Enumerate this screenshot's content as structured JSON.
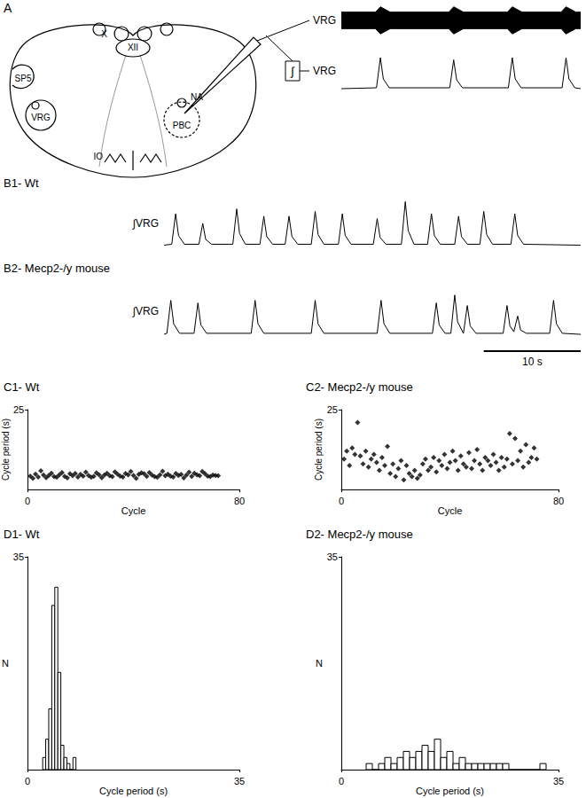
{
  "diagram": {
    "title": "A",
    "labels": [
      "X",
      "XII",
      "SP5",
      "VRG",
      "IO",
      "NA",
      "PBC"
    ]
  },
  "chart_data": [
    {
      "type": "band",
      "y_label": "VRG",
      "color": "#000000",
      "tick_labels": false,
      "xlim": [
        0,
        24.5
      ],
      "ylim": [
        -1,
        1
      ],
      "x": [
        0,
        3.5,
        4.0,
        5.0,
        11.0,
        11.5,
        12.5,
        17.0,
        17.5,
        18.5,
        22.5,
        23.0,
        24.0,
        24.5
      ],
      "upper": [
        0.55,
        0.55,
        0.9,
        0.55,
        0.55,
        0.9,
        0.55,
        0.55,
        0.9,
        0.55,
        0.55,
        0.9,
        0.55,
        0.55
      ],
      "lower": [
        -0.55,
        -0.55,
        -0.9,
        -0.55,
        -0.55,
        -0.9,
        -0.55,
        -0.55,
        -0.9,
        -0.55,
        -0.55,
        -0.9,
        -0.55,
        -0.55
      ]
    },
    {
      "type": "line",
      "y_label": "VRG",
      "annotations": [
        "∫"
      ],
      "color": "#000000",
      "tick_labels": false,
      "xlim": [
        0,
        24.5
      ],
      "ylim": [
        0,
        1
      ],
      "x": [
        0,
        3.6,
        4.0,
        4.3,
        4.9,
        11.1,
        11.5,
        11.8,
        12.4,
        17.1,
        17.5,
        17.8,
        18.4,
        22.6,
        23.0,
        23.3,
        23.9,
        24.5
      ],
      "values": [
        0.1,
        0.12,
        0.8,
        0.32,
        0.12,
        0.12,
        0.75,
        0.3,
        0.12,
        0.12,
        0.8,
        0.32,
        0.12,
        0.12,
        0.8,
        0.32,
        0.12,
        0.1
      ]
    },
    {
      "type": "line",
      "title": "B1- Wt",
      "y_label": "∫VRG",
      "color": "#000000",
      "tick_labels": false,
      "xlim": [
        0,
        43
      ],
      "ylim": [
        0,
        1.1
      ],
      "x": [
        0,
        0.8,
        1.2,
        1.5,
        2.1,
        3.6,
        4.0,
        4.3,
        4.9,
        7.1,
        7.5,
        7.8,
        8.4,
        9.9,
        10.3,
        10.6,
        11.2,
        12.5,
        12.9,
        13.2,
        13.8,
        15.2,
        15.6,
        15.9,
        16.5,
        18.0,
        18.4,
        18.7,
        19.3,
        21.6,
        22.0,
        22.3,
        22.9,
        24.5,
        24.9,
        25.2,
        25.8,
        27.2,
        27.6,
        27.9,
        28.5,
        30.0,
        30.4,
        30.7,
        31.3,
        32.6,
        33.0,
        33.3,
        33.9,
        35.8,
        36.2,
        36.5,
        37.1,
        43
      ],
      "values": [
        0.1,
        0.12,
        0.75,
        0.3,
        0.12,
        0.12,
        0.55,
        0.22,
        0.12,
        0.12,
        0.85,
        0.34,
        0.12,
        0.12,
        0.7,
        0.28,
        0.12,
        0.12,
        0.7,
        0.28,
        0.12,
        0.12,
        0.8,
        0.32,
        0.12,
        0.12,
        0.75,
        0.3,
        0.12,
        0.12,
        0.65,
        0.26,
        0.12,
        0.12,
        1,
        0.4,
        0.12,
        0.12,
        0.75,
        0.3,
        0.12,
        0.12,
        0.7,
        0.28,
        0.12,
        0.12,
        0.8,
        0.32,
        0.12,
        0.12,
        0.75,
        0.3,
        0.12,
        0.1
      ]
    },
    {
      "type": "line",
      "title": "B2- Mecp2-/y mouse",
      "y_label": "∫VRG",
      "color": "#000000",
      "tick_labels": false,
      "xlim": [
        0,
        43
      ],
      "ylim": [
        0,
        1.1
      ],
      "scale_bar": {
        "length": 10,
        "label": "10 s"
      },
      "x": [
        0,
        0.3,
        0.7,
        1.0,
        1.6,
        3.1,
        3.5,
        3.8,
        4.4,
        9.0,
        9.4,
        9.7,
        10.3,
        15.2,
        15.6,
        15.9,
        16.5,
        22.0,
        22.4,
        22.7,
        23.3,
        27.7,
        28.1,
        28.4,
        29.0,
        29.6,
        30.0,
        30.3,
        30.9,
        31.3,
        31.6,
        32.2,
        35.0,
        35.4,
        35.7,
        36.1,
        36.5,
        36.8,
        37.4,
        39.8,
        40.2,
        40.5,
        41.1,
        43
      ],
      "values": [
        0.1,
        0.12,
        0.75,
        0.3,
        0.12,
        0.12,
        0.7,
        0.28,
        0.12,
        0.12,
        0.75,
        0.3,
        0.12,
        0.12,
        0.75,
        0.3,
        0.12,
        0.12,
        0.75,
        0.3,
        0.12,
        0.12,
        0.7,
        0.28,
        0.12,
        0.12,
        0.85,
        0.34,
        0.12,
        0.65,
        0.26,
        0.12,
        0.12,
        0.65,
        0.26,
        0.15,
        0.45,
        0.18,
        0.12,
        0.12,
        0.75,
        0.3,
        0.12,
        0.1
      ]
    },
    {
      "type": "scatter",
      "title": "C1- Wt",
      "x_label": "Cycle",
      "y_label": "Cycle period (s)",
      "color": "#000000",
      "marker": "diamond",
      "xlim": [
        0,
        80
      ],
      "ylim": [
        0,
        25
      ],
      "xticks": [
        0,
        80
      ],
      "yticks": [
        25
      ],
      "x": [
        1,
        2,
        3,
        4,
        5,
        6,
        7,
        8,
        9,
        10,
        11,
        12,
        13,
        14,
        15,
        16,
        17,
        18,
        19,
        20,
        21,
        22,
        23,
        24,
        25,
        26,
        27,
        28,
        29,
        30,
        31,
        32,
        33,
        34,
        35,
        36,
        37,
        38,
        39,
        40,
        41,
        42,
        43,
        44,
        45,
        46,
        47,
        48,
        49,
        50,
        51,
        52,
        53,
        54,
        55,
        56,
        57,
        58,
        59,
        60,
        61,
        62,
        63,
        64,
        65,
        66,
        67,
        68,
        69,
        70,
        71,
        72
      ],
      "values": [
        4.2,
        3.5,
        4.8,
        3.9,
        5.8,
        4.5,
        3.7,
        4.4,
        5.1,
        4.0,
        3.8,
        4.6,
        5.3,
        4.1,
        3.6,
        4.9,
        4.3,
        5.0,
        3.9,
        4.7,
        4.2,
        5.4,
        4.4,
        3.8,
        4.1,
        5.2,
        4.6,
        3.7,
        4.5,
        5.1,
        4.3,
        4.0,
        5.5,
        4.8,
        4.2,
        3.9,
        5.0,
        4.6,
        5.6,
        4.4,
        3.5,
        4.7,
        5.2,
        4.9,
        4.1,
        5.3,
        4.5,
        4.0,
        3.8,
        4.6,
        5.7,
        4.3,
        4.8,
        4.2,
        3.9,
        5.0,
        4.4,
        4.7,
        3.6,
        4.5,
        5.4,
        4.1,
        5.1,
        4.6,
        4.3,
        5.6,
        4.9,
        4.2,
        4.0,
        4.5,
        4.4,
        4.3
      ]
    },
    {
      "type": "scatter",
      "title": "C2- Mecp2-/y mouse",
      "x_label": "Cycle",
      "y_label": "Cycle period (s)",
      "color": "#000000",
      "marker": "diamond",
      "xlim": [
        0,
        80
      ],
      "ylim": [
        0,
        25
      ],
      "xticks": [
        0,
        80
      ],
      "yticks": [
        25
      ],
      "x": [
        1,
        2,
        3,
        4,
        5,
        6,
        7,
        8,
        9,
        10,
        11,
        12,
        13,
        14,
        15,
        16,
        17,
        18,
        19,
        20,
        21,
        22,
        23,
        24,
        25,
        26,
        27,
        28,
        29,
        30,
        31,
        32,
        33,
        34,
        35,
        36,
        37,
        38,
        39,
        40,
        41,
        42,
        43,
        44,
        45,
        46,
        47,
        48,
        49,
        50,
        51,
        52,
        53,
        54,
        55,
        56,
        57,
        58,
        59,
        60,
        61,
        62,
        63,
        64,
        65,
        66,
        67,
        68,
        69,
        70,
        71,
        72
      ],
      "values": [
        9.5,
        12,
        7.5,
        13,
        11,
        21,
        10.5,
        8,
        12,
        7,
        9.5,
        11,
        8.5,
        6,
        10,
        7.5,
        13.5,
        5,
        8,
        4,
        6.5,
        9,
        3,
        7.5,
        5,
        4,
        6,
        3.5,
        4.5,
        8,
        9.5,
        6,
        7,
        10,
        5.5,
        9,
        7.5,
        11,
        6.5,
        8.5,
        12,
        9,
        6,
        10.5,
        8,
        7,
        11.5,
        6.5,
        9,
        12.5,
        8,
        6,
        10,
        9,
        7.5,
        11,
        8.5,
        6,
        10,
        7,
        9.5,
        17.5,
        8,
        16,
        9,
        12,
        7,
        14,
        8.5,
        10,
        13,
        9.5
      ]
    },
    {
      "type": "histogram",
      "title": "D1- Wt",
      "x_label": "Cycle period (s)",
      "y_label": "N",
      "color": "#000000",
      "xlim": [
        0,
        35
      ],
      "ylim": [
        0,
        35
      ],
      "xticks": [
        0,
        35
      ],
      "yticks": [
        35
      ],
      "bins": [
        2.5,
        3,
        3.5,
        4,
        4.5,
        5,
        5.5,
        6,
        6.5,
        7,
        7.5,
        8
      ],
      "values": [
        2,
        5,
        10,
        27,
        30,
        16,
        4,
        2,
        1,
        0,
        2
      ]
    },
    {
      "type": "histogram",
      "title": "D2- Mecp2-/y mouse",
      "x_label": "Cycle period (s)",
      "y_label": "N",
      "color": "#000000",
      "xlim": [
        0,
        35
      ],
      "ylim": [
        0,
        35
      ],
      "xticks": [
        0,
        35
      ],
      "yticks": [
        35
      ],
      "bins": [
        4,
        5,
        6,
        7,
        8,
        9,
        10,
        11,
        12,
        13,
        14,
        15,
        16,
        17,
        18,
        19,
        20,
        21,
        22,
        23,
        24,
        25,
        26,
        27,
        28,
        29,
        30,
        31,
        32,
        33
      ],
      "values": [
        1,
        0,
        1,
        2,
        1,
        2,
        3,
        2,
        3,
        4,
        3,
        5,
        2,
        3,
        1,
        2,
        1,
        1,
        1,
        1,
        1,
        1,
        1,
        0,
        0,
        0,
        0,
        0,
        1
      ]
    }
  ]
}
